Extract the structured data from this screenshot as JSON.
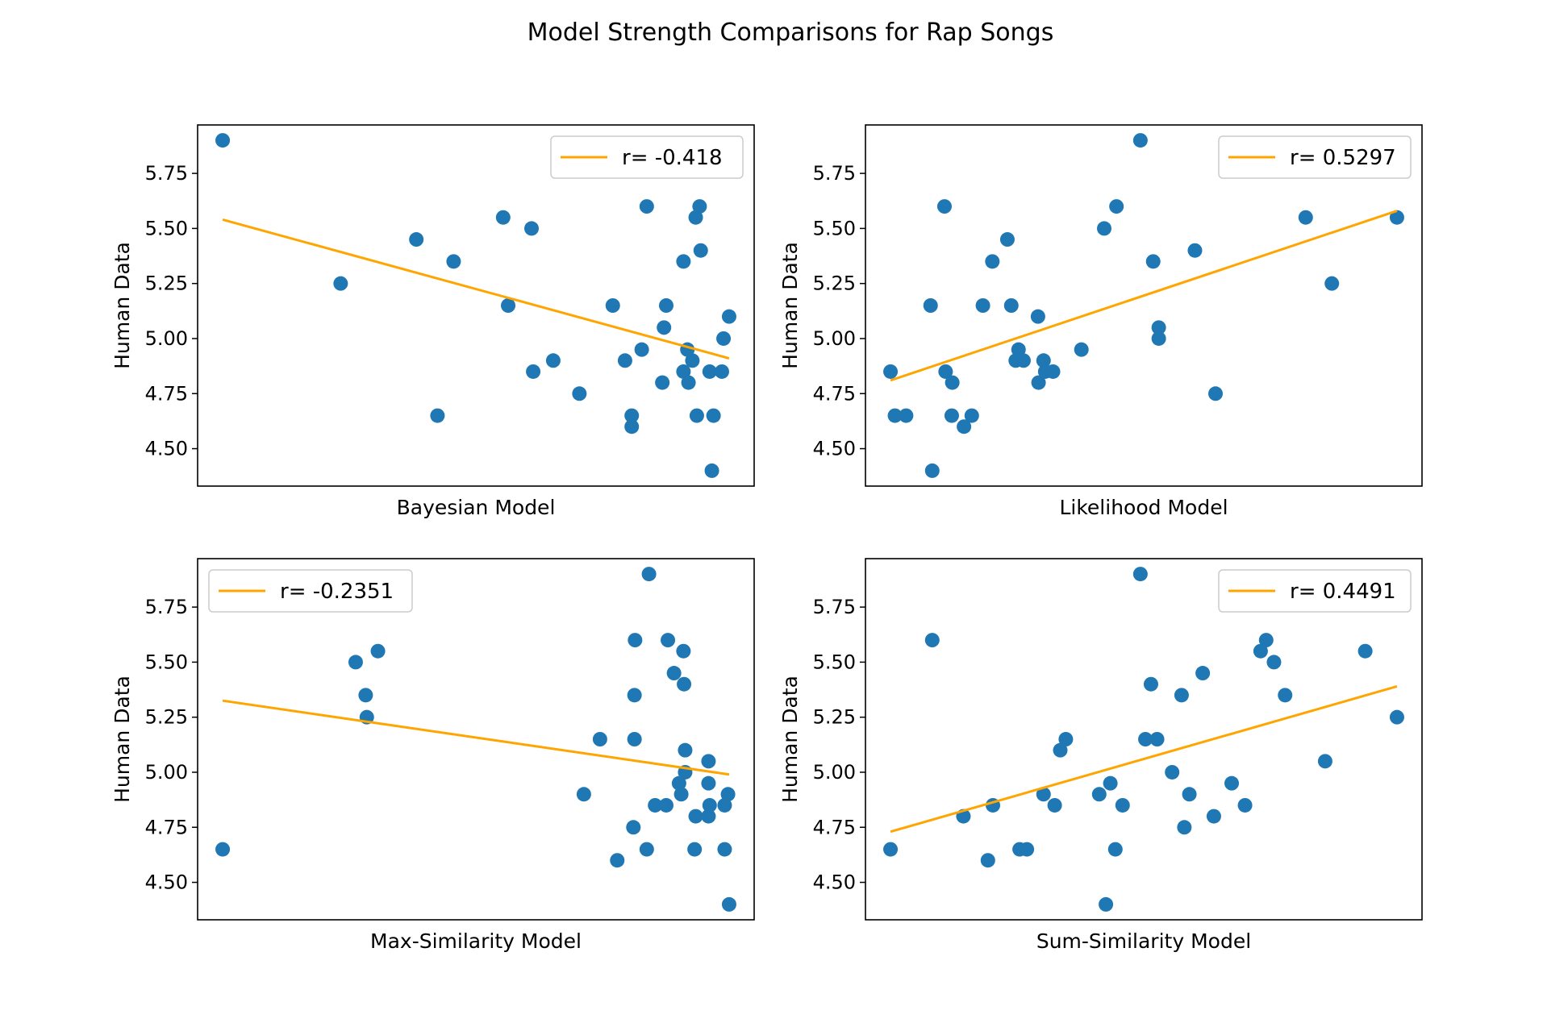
{
  "figure": {
    "title": "Model Strength Comparisons for Rap Songs"
  },
  "colors": {
    "points": "#1f77b4",
    "fit_line": "#ffa500",
    "axes": "#000000",
    "legend_border": "#cccccc"
  },
  "chart_data": [
    {
      "type": "scatter",
      "xlabel": "Bayesian Model",
      "ylabel": "Human Data",
      "xlim": [
        0,
        1
      ],
      "ylim": [
        4.33,
        5.97
      ],
      "yticks": [
        "4.50",
        "4.75",
        "5.00",
        "5.25",
        "5.50",
        "5.75"
      ],
      "x_ticks_visible": false,
      "legend": {
        "label": "r= -0.418",
        "placement": "upper right"
      },
      "fit_line": {
        "x": [
          0.045,
          0.955
        ],
        "y": [
          5.54,
          4.91
        ]
      },
      "points": [
        [
          0.045,
          5.9
        ],
        [
          0.257,
          5.25
        ],
        [
          0.393,
          5.45
        ],
        [
          0.431,
          4.65
        ],
        [
          0.46,
          5.35
        ],
        [
          0.549,
          5.55
        ],
        [
          0.558,
          5.15
        ],
        [
          0.6,
          5.5
        ],
        [
          0.603,
          4.85
        ],
        [
          0.639,
          4.9
        ],
        [
          0.686,
          4.75
        ],
        [
          0.746,
          5.15
        ],
        [
          0.768,
          4.9
        ],
        [
          0.78,
          4.65
        ],
        [
          0.78,
          4.6
        ],
        [
          0.798,
          4.95
        ],
        [
          0.807,
          5.6
        ],
        [
          0.835,
          4.8
        ],
        [
          0.838,
          5.05
        ],
        [
          0.842,
          5.15
        ],
        [
          0.873,
          5.35
        ],
        [
          0.873,
          4.85
        ],
        [
          0.88,
          4.95
        ],
        [
          0.882,
          4.8
        ],
        [
          0.889,
          4.9
        ],
        [
          0.895,
          5.55
        ],
        [
          0.897,
          4.65
        ],
        [
          0.902,
          5.6
        ],
        [
          0.904,
          5.4
        ],
        [
          0.92,
          4.85
        ],
        [
          0.924,
          4.4
        ],
        [
          0.927,
          4.65
        ],
        [
          0.942,
          4.85
        ],
        [
          0.945,
          5.0
        ],
        [
          0.955,
          5.1
        ]
      ]
    },
    {
      "type": "scatter",
      "xlabel": "Likelihood Model",
      "ylabel": "Human Data",
      "xlim": [
        0,
        1
      ],
      "ylim": [
        4.33,
        5.97
      ],
      "yticks": [
        "4.50",
        "4.75",
        "5.00",
        "5.25",
        "5.50",
        "5.75"
      ],
      "x_ticks_visible": false,
      "legend": {
        "label": "r= 0.5297",
        "placement": "upper right"
      },
      "fit_line": {
        "x": [
          0.045,
          0.955
        ],
        "y": [
          4.81,
          5.58
        ]
      },
      "points": [
        [
          0.045,
          4.85
        ],
        [
          0.053,
          4.65
        ],
        [
          0.073,
          4.65
        ],
        [
          0.117,
          5.15
        ],
        [
          0.12,
          4.4
        ],
        [
          0.142,
          5.6
        ],
        [
          0.144,
          4.85
        ],
        [
          0.155,
          4.65
        ],
        [
          0.156,
          4.8
        ],
        [
          0.177,
          4.6
        ],
        [
          0.191,
          4.65
        ],
        [
          0.211,
          5.15
        ],
        [
          0.228,
          5.35
        ],
        [
          0.255,
          5.45
        ],
        [
          0.262,
          5.15
        ],
        [
          0.27,
          4.9
        ],
        [
          0.275,
          4.95
        ],
        [
          0.284,
          4.9
        ],
        [
          0.31,
          5.1
        ],
        [
          0.311,
          4.8
        ],
        [
          0.32,
          4.9
        ],
        [
          0.323,
          4.85
        ],
        [
          0.337,
          4.85
        ],
        [
          0.388,
          4.95
        ],
        [
          0.429,
          5.5
        ],
        [
          0.451,
          5.6
        ],
        [
          0.494,
          5.9
        ],
        [
          0.517,
          5.35
        ],
        [
          0.527,
          5.05
        ],
        [
          0.527,
          5.0
        ],
        [
          0.592,
          5.4
        ],
        [
          0.629,
          4.75
        ],
        [
          0.791,
          5.55
        ],
        [
          0.838,
          5.25
        ],
        [
          0.955,
          5.55
        ]
      ]
    },
    {
      "type": "scatter",
      "xlabel": "Max-Similarity Model",
      "ylabel": "Human Data",
      "xlim": [
        0,
        1
      ],
      "ylim": [
        4.33,
        5.97
      ],
      "yticks": [
        "4.50",
        "4.75",
        "5.00",
        "5.25",
        "5.50",
        "5.75"
      ],
      "x_ticks_visible": false,
      "legend": {
        "label": "r= -0.2351",
        "placement": "upper left"
      },
      "fit_line": {
        "x": [
          0.045,
          0.955
        ],
        "y": [
          5.325,
          4.99
        ]
      },
      "points": [
        [
          0.045,
          4.65
        ],
        [
          0.284,
          5.5
        ],
        [
          0.302,
          5.35
        ],
        [
          0.304,
          5.25
        ],
        [
          0.324,
          5.55
        ],
        [
          0.694,
          4.9
        ],
        [
          0.723,
          5.15
        ],
        [
          0.754,
          4.6
        ],
        [
          0.783,
          4.75
        ],
        [
          0.785,
          5.15
        ],
        [
          0.785,
          5.35
        ],
        [
          0.786,
          5.6
        ],
        [
          0.807,
          4.65
        ],
        [
          0.811,
          5.9
        ],
        [
          0.822,
          4.85
        ],
        [
          0.842,
          4.85
        ],
        [
          0.845,
          5.6
        ],
        [
          0.856,
          5.45
        ],
        [
          0.865,
          4.95
        ],
        [
          0.869,
          4.9
        ],
        [
          0.873,
          5.55
        ],
        [
          0.874,
          5.4
        ],
        [
          0.876,
          5.1
        ],
        [
          0.876,
          5.0
        ],
        [
          0.893,
          4.65
        ],
        [
          0.895,
          4.8
        ],
        [
          0.918,
          4.8
        ],
        [
          0.918,
          4.95
        ],
        [
          0.918,
          5.05
        ],
        [
          0.92,
          4.85
        ],
        [
          0.947,
          4.85
        ],
        [
          0.947,
          4.65
        ],
        [
          0.953,
          4.9
        ],
        [
          0.955,
          4.4
        ]
      ]
    },
    {
      "type": "scatter",
      "xlabel": "Sum-Similarity Model",
      "ylabel": "Human Data",
      "xlim": [
        0,
        1
      ],
      "ylim": [
        4.33,
        5.97
      ],
      "yticks": [
        "4.50",
        "4.75",
        "5.00",
        "5.25",
        "5.50",
        "5.75"
      ],
      "x_ticks_visible": false,
      "legend": {
        "label": "r= 0.4491",
        "placement": "upper right"
      },
      "fit_line": {
        "x": [
          0.045,
          0.955
        ],
        "y": [
          4.73,
          5.39
        ]
      },
      "points": [
        [
          0.045,
          4.65
        ],
        [
          0.12,
          5.6
        ],
        [
          0.176,
          4.8
        ],
        [
          0.22,
          4.6
        ],
        [
          0.229,
          4.85
        ],
        [
          0.277,
          4.65
        ],
        [
          0.29,
          4.65
        ],
        [
          0.32,
          4.9
        ],
        [
          0.34,
          4.85
        ],
        [
          0.35,
          5.1
        ],
        [
          0.36,
          5.15
        ],
        [
          0.42,
          4.9
        ],
        [
          0.432,
          4.4
        ],
        [
          0.44,
          4.95
        ],
        [
          0.449,
          4.65
        ],
        [
          0.462,
          4.85
        ],
        [
          0.494,
          5.9
        ],
        [
          0.503,
          5.15
        ],
        [
          0.513,
          5.4
        ],
        [
          0.524,
          5.15
        ],
        [
          0.551,
          5.0
        ],
        [
          0.568,
          5.35
        ],
        [
          0.573,
          4.75
        ],
        [
          0.582,
          4.9
        ],
        [
          0.606,
          5.45
        ],
        [
          0.626,
          4.8
        ],
        [
          0.658,
          4.95
        ],
        [
          0.682,
          4.85
        ],
        [
          0.71,
          5.55
        ],
        [
          0.72,
          5.6
        ],
        [
          0.734,
          5.5
        ],
        [
          0.754,
          5.35
        ],
        [
          0.826,
          5.05
        ],
        [
          0.898,
          5.55
        ],
        [
          0.955,
          5.25
        ]
      ]
    }
  ]
}
